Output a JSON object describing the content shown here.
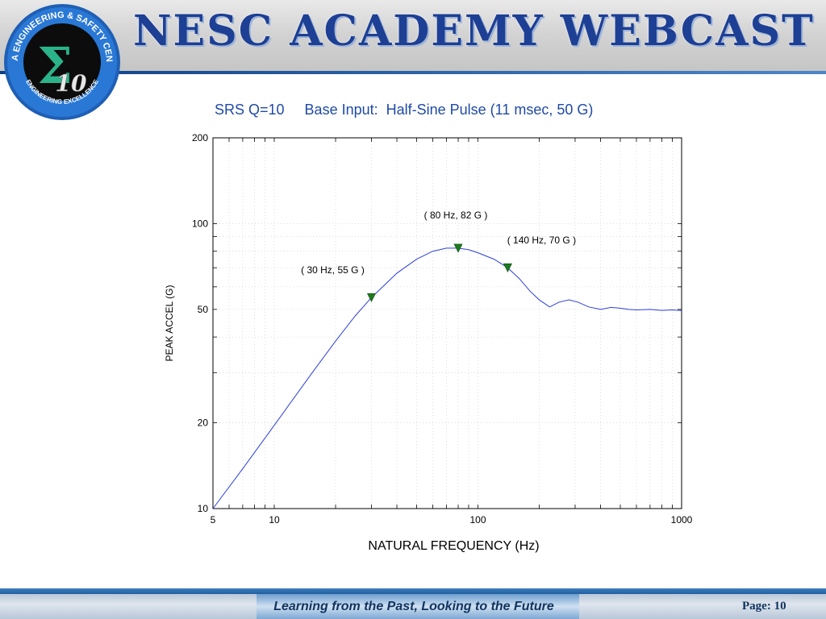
{
  "header": {
    "title": "NESC ACADEMY WEBCAST",
    "logo": {
      "ring_text": "NASA ENGINEERING & SAFETY CENTER",
      "bottom_text": "ENGINEERING EXCELLENCE",
      "number": "10",
      "symbol": "Σ"
    }
  },
  "footer": {
    "tagline": "Learning from the Past, Looking to the Future",
    "page_label": "Page: 10"
  },
  "chart_data": {
    "type": "line",
    "title": "SRS Q=10     Base Input:  Half-Sine Pulse (11 msec, 50 G)",
    "xlabel": "NATURAL FREQUENCY (Hz)",
    "ylabel": "PEAK ACCEL (G)",
    "x_scale": "log",
    "y_scale": "log",
    "xlim": [
      5,
      1000
    ],
    "ylim": [
      10,
      200
    ],
    "x_ticks": [
      5,
      10,
      100,
      1000
    ],
    "x_tick_labels": [
      "5",
      "10",
      "100",
      "1000"
    ],
    "y_ticks": [
      10,
      20,
      50,
      100,
      200
    ],
    "y_tick_labels": [
      "10",
      "20",
      "50",
      "100",
      "200"
    ],
    "grid": true,
    "line_color": "#2b3fdc",
    "marker_color": "#1f7a1f",
    "series": [
      {
        "x": [
          5,
          7,
          10,
          15,
          20,
          25,
          30,
          40,
          50,
          60,
          70,
          80,
          90,
          100,
          120,
          140,
          160,
          180,
          200,
          225,
          250,
          280,
          310,
          350,
          400,
          450,
          500,
          550,
          600,
          700,
          800,
          900,
          1000
        ],
        "y": [
          10,
          13.8,
          19.6,
          29.3,
          38.7,
          47.5,
          55,
          67,
          75,
          80,
          82,
          82,
          81,
          79,
          75,
          70,
          64,
          58,
          54,
          51,
          53,
          54,
          53,
          51,
          50,
          50.8,
          50.5,
          50,
          49.8,
          50,
          49.6,
          49.8,
          49.5
        ]
      }
    ],
    "annotations": [
      {
        "x": 30,
        "y": 55,
        "text": "( 30 Hz, 55 G )"
      },
      {
        "x": 80,
        "y": 82,
        "text": "( 80 Hz, 82 G )"
      },
      {
        "x": 140,
        "y": 70,
        "text": "( 140 Hz, 70 G )"
      }
    ]
  }
}
